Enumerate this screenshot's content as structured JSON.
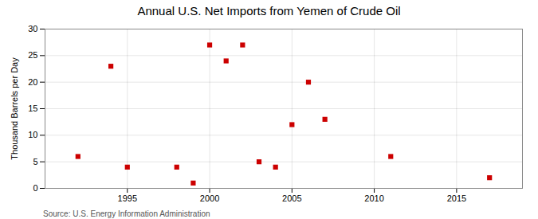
{
  "chart_data": {
    "type": "scatter",
    "title": "Annual U.S. Net Imports from Yemen of Crude Oil",
    "ylabel": "Thousand Barrels per Day",
    "annotations": [
      "Source: U.S. Energy Information Administration"
    ],
    "x": [
      1992,
      1994,
      1995,
      1998,
      1999,
      2000,
      2001,
      2002,
      2003,
      2004,
      2005,
      2006,
      2007,
      2011,
      2017
    ],
    "values": [
      6,
      23,
      4,
      4,
      1,
      27,
      24,
      27,
      5,
      4,
      12,
      20,
      13,
      6,
      2
    ],
    "xlim": [
      1990,
      2019
    ],
    "ylim": [
      0,
      30
    ],
    "xticks": [
      1995,
      2000,
      2005,
      2010,
      2015
    ],
    "yticks": [
      0,
      5,
      10,
      15,
      20,
      25,
      30
    ],
    "grid": true,
    "color": "#cc0000",
    "marker": "square"
  }
}
